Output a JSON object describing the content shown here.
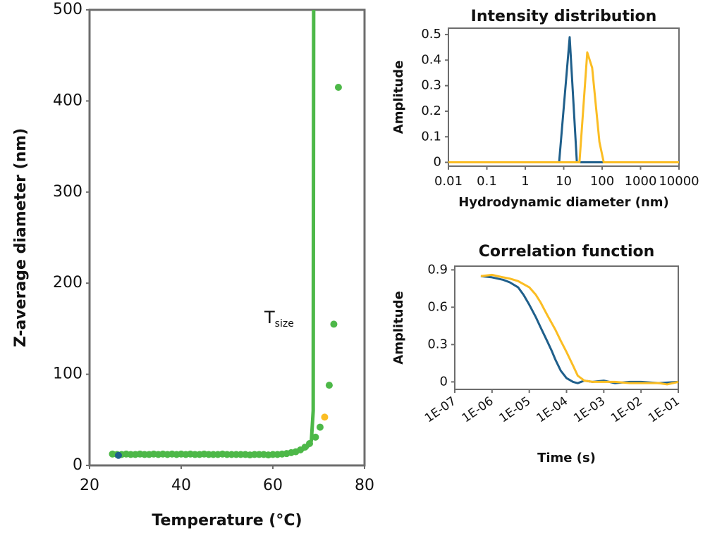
{
  "chart_data": [
    {
      "type": "scatter",
      "xlabel": "Temperature (°C)",
      "ylabel": "Z-average diameter (nm)",
      "annotation": {
        "text": "T",
        "subscript": "size"
      },
      "xlim": [
        20,
        80
      ],
      "ylim": [
        0,
        500
      ],
      "xticks": [
        20,
        40,
        60,
        80
      ],
      "yticks": [
        0,
        100,
        200,
        300,
        400,
        500
      ],
      "series": [
        {
          "color": "#4db848",
          "x": [
            25,
            26,
            27,
            28,
            29,
            30,
            31,
            32,
            33,
            34,
            35,
            36,
            37,
            38,
            39,
            40,
            41,
            42,
            43,
            44,
            45,
            46,
            47,
            48,
            49,
            50,
            51,
            52,
            53,
            54,
            55,
            56,
            57,
            58,
            59,
            60,
            61,
            62,
            63,
            64,
            65,
            66,
            67,
            68,
            69.3,
            70.3,
            72.3,
            73.3,
            74.3
          ],
          "values": [
            12.5,
            12,
            12,
            12.5,
            12,
            12,
            12.5,
            12,
            12,
            12.5,
            12,
            12.5,
            12,
            12.5,
            12,
            12.5,
            12,
            12.5,
            12,
            12,
            12.5,
            12,
            12,
            12,
            12.5,
            12,
            12,
            12,
            12,
            12,
            11.5,
            12,
            12,
            12,
            11.5,
            12,
            12,
            12.5,
            13,
            14,
            15,
            17,
            20,
            24,
            31,
            42,
            88,
            155,
            415
          ]
        },
        {
          "color": "#1f5f8b",
          "x": [
            26.3
          ],
          "values": [
            11
          ]
        },
        {
          "color": "#fbbd23",
          "x": [
            71.3
          ],
          "values": [
            53
          ]
        },
        {
          "type": "line",
          "color": "#4db848",
          "x": [
            64,
            66,
            67.5,
            68.4,
            68.8,
            68.9
          ],
          "values": [
            13,
            16,
            20,
            27,
            60,
            500
          ]
        }
      ]
    },
    {
      "type": "line",
      "title": "Intensity distribution",
      "xlabel": "Hydrodynamic diameter (nm)",
      "ylabel": "Amplitude",
      "xscale": "log",
      "xlim": [
        0.01,
        10000
      ],
      "ylim": [
        -0.015,
        0.525
      ],
      "xticks": [
        0.01,
        0.1,
        1,
        10,
        100,
        1000,
        10000
      ],
      "yticks": [
        0,
        0.1,
        0.2,
        0.3,
        0.4,
        0.5
      ],
      "series": [
        {
          "color": "#1f5f8b",
          "x": [
            0.01,
            7.6,
            14.3,
            22,
            10000
          ],
          "values": [
            0,
            0,
            0.49,
            0,
            0
          ]
        },
        {
          "color": "#fbbd23",
          "x": [
            0.01,
            25.7,
            41,
            55,
            85,
            110,
            10000
          ],
          "values": [
            0,
            0,
            0.43,
            0.37,
            0.08,
            0,
            0
          ]
        }
      ]
    },
    {
      "type": "line",
      "title": "Correlation function",
      "xlabel": "Time (s)",
      "ylabel": "Amplitude",
      "xscale": "log",
      "xlim": [
        1e-07,
        0.1
      ],
      "ylim": [
        -0.06,
        0.93
      ],
      "xticks": [
        {
          "value": 1e-07,
          "label": "1E-07"
        },
        {
          "value": 1e-06,
          "label": "1E-06"
        },
        {
          "value": 1e-05,
          "label": "1E-05"
        },
        {
          "value": 0.0001,
          "label": "1E-04"
        },
        {
          "value": 0.001,
          "label": "1E-03"
        },
        {
          "value": 0.01,
          "label": "1E-02"
        },
        {
          "value": 0.1,
          "label": "1E-01"
        }
      ],
      "yticks": [
        0,
        0.3,
        0.6,
        0.9
      ],
      "series": [
        {
          "color": "#1f5f8b",
          "x": [
            5e-07,
            1e-06,
            2e-06,
            3e-06,
            5e-06,
            7e-06,
            1e-05,
            1.5e-05,
            2e-05,
            3e-05,
            4e-05,
            5e-05,
            7e-05,
            0.0001,
            0.00015,
            0.0002,
            0.0003,
            0.0005,
            0.001,
            0.002,
            0.005,
            0.01,
            0.03,
            0.1
          ],
          "values": [
            0.85,
            0.84,
            0.82,
            0.8,
            0.76,
            0.7,
            0.62,
            0.52,
            0.44,
            0.33,
            0.25,
            0.18,
            0.09,
            0.03,
            0,
            -0.01,
            0.01,
            0,
            0.01,
            -0.01,
            0,
            0,
            -0.01,
            0
          ]
        },
        {
          "color": "#fbbd23",
          "x": [
            5e-07,
            1e-06,
            2e-06,
            3e-06,
            5e-06,
            1e-05,
            1.5e-05,
            2e-05,
            3e-05,
            5e-05,
            7e-05,
            0.0001,
            0.00015,
            0.0002,
            0.0003,
            0.0005,
            0.001,
            0.002,
            0.005,
            0.01,
            0.03,
            0.05,
            0.1
          ],
          "values": [
            0.85,
            0.86,
            0.84,
            0.83,
            0.81,
            0.76,
            0.7,
            0.64,
            0.54,
            0.42,
            0.33,
            0.24,
            0.13,
            0.05,
            0.01,
            0,
            0,
            0,
            -0.01,
            -0.01,
            -0.01,
            -0.02,
            0
          ]
        }
      ]
    }
  ]
}
